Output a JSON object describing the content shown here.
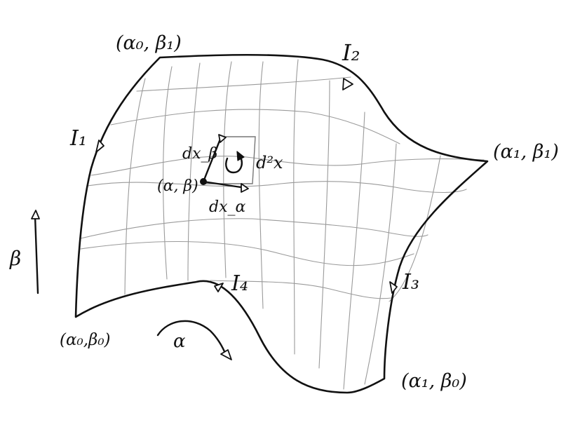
{
  "corners": {
    "top_left": "(α₀, β₁)",
    "right": "(α₁, β₁)",
    "bottom_left": "(α₀,β₀)",
    "bottom_right": "(α₁, β₀)"
  },
  "edges": {
    "left": "I₁",
    "top": "I₂",
    "right": "I₃",
    "bottom": "I₄"
  },
  "element": {
    "point": "(α, β)",
    "d_beta": "dx_β",
    "d_alpha": "dx_α",
    "area": "d²x"
  },
  "axes": {
    "alpha": "α",
    "beta": "β"
  }
}
